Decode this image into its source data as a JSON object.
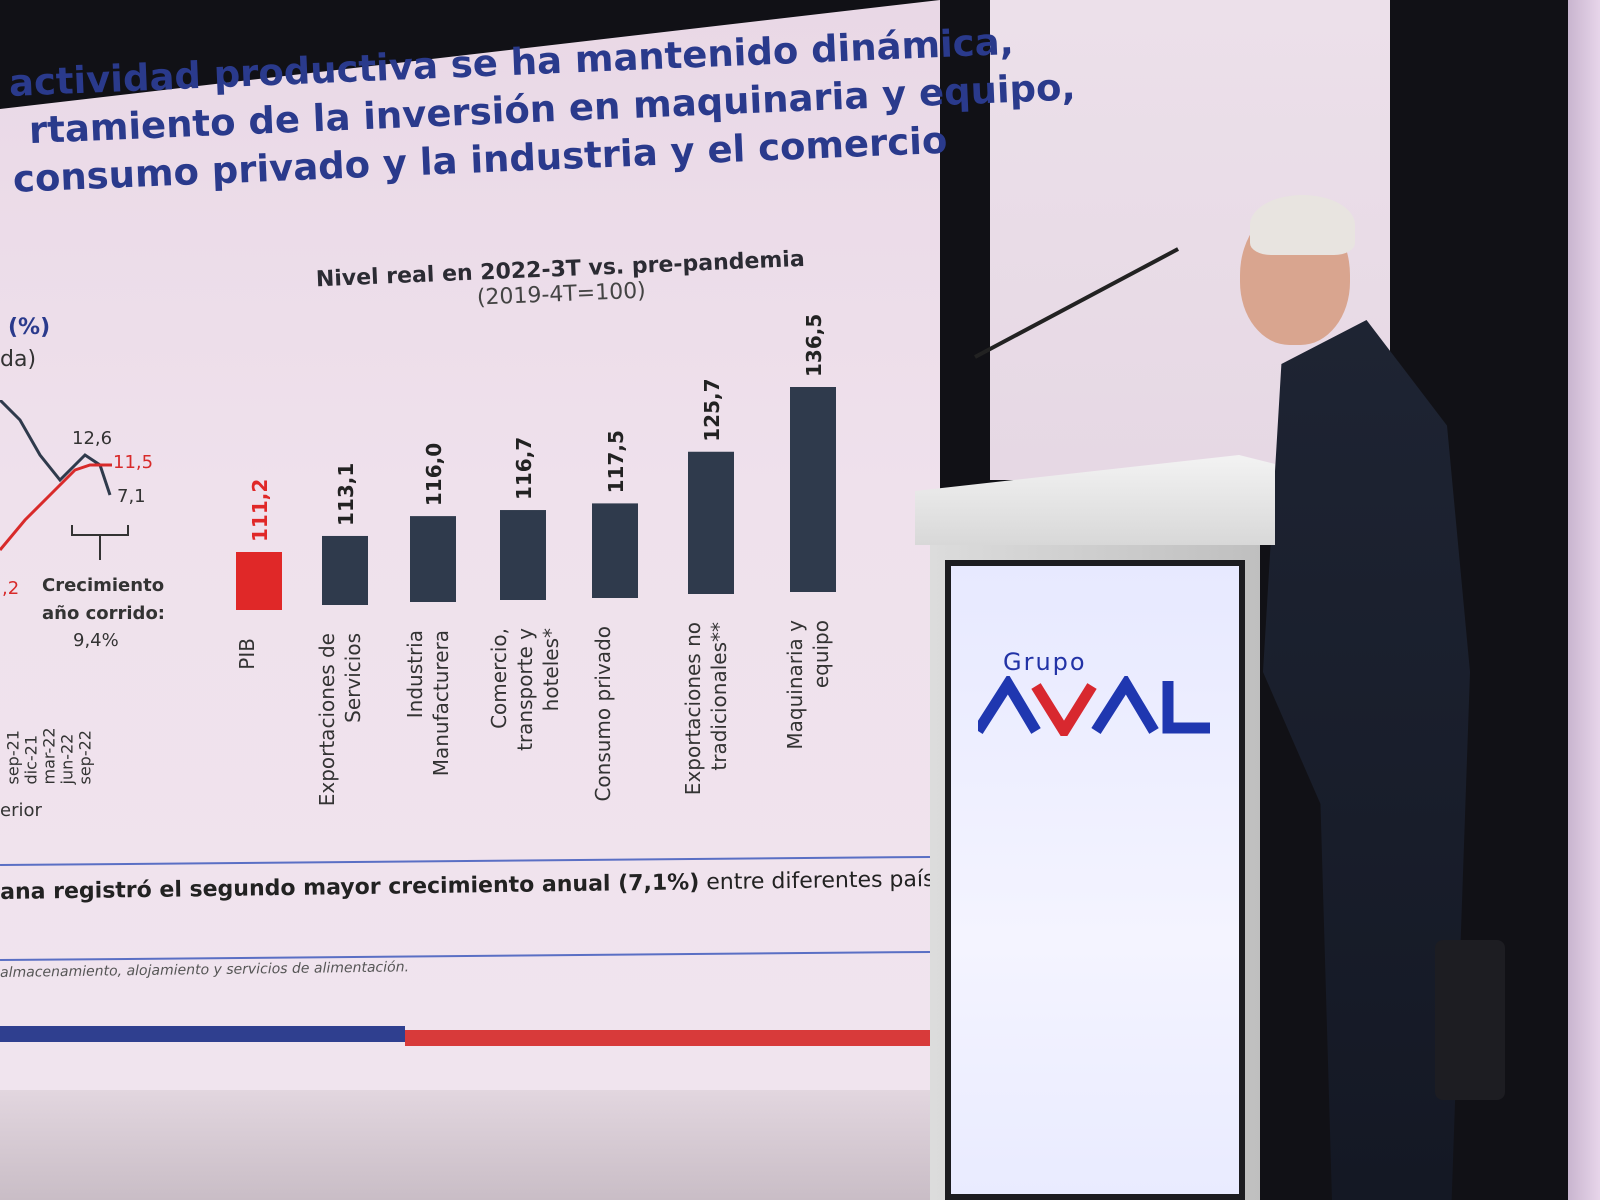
{
  "slide": {
    "title_lines": [
      "actividad productiva se ha mantenido dinámica,",
      "rtamiento de la inversión en maquinaria y equipo,",
      "consumo privado y la industria y el comercio"
    ],
    "left_fragments": {
      "unit": "(%)",
      "unit2": "da)",
      "label_a": "12,6",
      "label_b": "11,5",
      "label_c": "7,1",
      "label_d": ",2",
      "growth_label_1": "Crecimiento",
      "growth_label_2": "año corrido:",
      "growth_value": "9,4%",
      "x_ticks": [
        "sep-21",
        "dic-21",
        "mar-22",
        "jun-22",
        "sep-22"
      ],
      "x_caption": "erior"
    },
    "footnote": {
      "prefix": "ana registró el segundo mayor crecimiento anual ",
      "bold_value": "(7,1%)",
      "suffix": " entre diferentes países que han"
    },
    "small_note": "almacenamiento, alojamiento y servicios de alimentación."
  },
  "podium": {
    "brand_top": "Grupo",
    "brand_main": "AVAL"
  },
  "colors": {
    "title_blue": "#2a3a8c",
    "bar_dark": "#2f3a4c",
    "bar_red": "#e02828",
    "line_red": "#d82a2a",
    "line_dark": "#2f3a4c",
    "brand_blue": "#1f37b0",
    "brand_red": "#d8282f"
  },
  "chart_data": {
    "type": "bar",
    "title": "Nivel real en 2022-3T vs. pre-pandemia",
    "subtitle": "(2019-4T=100)",
    "categories": [
      "PIB",
      "Exportaciones de Servicios",
      "Industria Manufacturera",
      "Comercio, transporte y hoteles*",
      "Consumo privado",
      "Exportaciones no tradicionales**",
      "Maquinaria y equipo"
    ],
    "category_lines": [
      [
        "PIB"
      ],
      [
        "Exportaciones de",
        "Servicios"
      ],
      [
        "Industria",
        "Manufacturera"
      ],
      [
        "Comercio,",
        "transporte y",
        "hoteles*"
      ],
      [
        "Consumo privado"
      ],
      [
        "Exportaciones no",
        "tradicionales**"
      ],
      [
        "Maquinaria y",
        "equipo"
      ]
    ],
    "values": [
      111.2,
      113.1,
      116.0,
      116.7,
      117.5,
      125.7,
      136.5
    ],
    "value_labels": [
      "111,2",
      "113,1",
      "116,0",
      "116,7",
      "117,5",
      "125,7",
      "136,5"
    ],
    "highlight_index": 0,
    "baseline": 100,
    "grid": false,
    "legend": "none"
  }
}
